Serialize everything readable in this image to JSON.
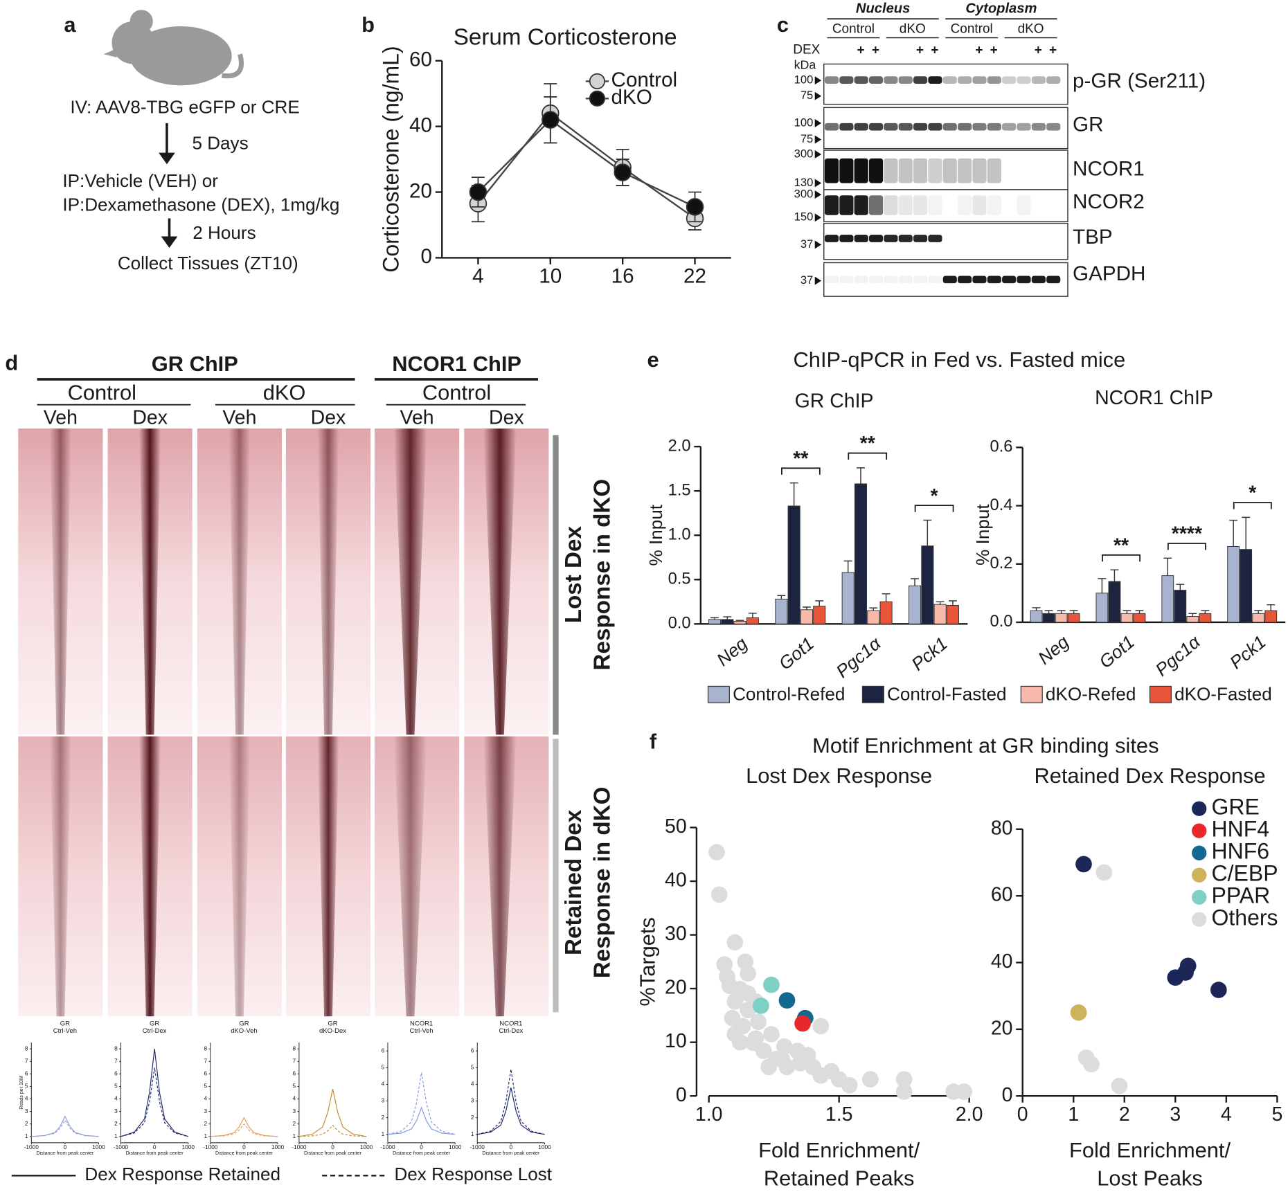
{
  "panel_labels": [
    "a",
    "b",
    "c",
    "d",
    "e",
    "f"
  ],
  "schematic": {
    "lines": [
      "IV: AAV8-TBG eGFP or CRE",
      "IP:Vehicle (VEH) or",
      "IP:Dexamethasone (DEX), 1mg/kg",
      "Collect Tissues (ZT10)"
    ],
    "arrow_labels": [
      "5 Days",
      "2 Hours"
    ]
  },
  "western_blot": {
    "compartments": [
      "Nucleus",
      "Cytoplasm"
    ],
    "genotypes": [
      "Control",
      "dKO",
      "Control",
      "dKO"
    ],
    "dex_label": "DEX",
    "dex_marks": [
      "+",
      "+",
      "+",
      "+",
      "+",
      "+",
      "+",
      "+"
    ],
    "kda_label": "kDa",
    "rows": [
      {
        "protein": "p-GR (Ser211)",
        "markers": [
          "100",
          "75"
        ]
      },
      {
        "protein": "GR",
        "markers": [
          "100",
          "75"
        ]
      },
      {
        "protein": "NCOR1",
        "markers": [
          "300",
          "130"
        ]
      },
      {
        "protein": "NCOR2",
        "markers": [
          "300",
          "150"
        ]
      },
      {
        "protein": "TBP",
        "markers": [
          "37"
        ]
      },
      {
        "protein": "GAPDH",
        "markers": [
          "37"
        ]
      }
    ]
  },
  "heatmap": {
    "groups": [
      "GR ChIP",
      "NCOR1 ChIP"
    ],
    "genotypes": [
      "Control",
      "dKO",
      "Control"
    ],
    "treatments": [
      "Veh",
      "Dex",
      "Veh",
      "Dex",
      "Veh",
      "Dex"
    ],
    "clusters": [
      [
        "Lost Dex",
        "Response in dKO"
      ],
      [
        "Retained Dex",
        "Response in dKO"
      ]
    ],
    "profile_legend": [
      "Dex Response Retained",
      "Dex Response Lost"
    ]
  },
  "panel_e_title": "ChIP-qPCR in Fed vs. Fasted mice",
  "panel_f_title": "Motif Enrichment at GR binding sites",
  "chart_data": [
    {
      "type": "line",
      "title": "Serum Corticosterone",
      "ylabel": "Corticosterone (ng/mL)",
      "x": [
        4,
        10,
        16,
        22
      ],
      "xlim": [
        1,
        25
      ],
      "xticks": [
        4,
        10,
        16,
        22
      ],
      "ylim": [
        0,
        60
      ],
      "yticks": [
        0,
        20,
        40,
        60
      ],
      "legend": "upper right",
      "series": [
        {
          "name": "Control",
          "color": "#d3d3d3",
          "values": [
            16.5,
            44,
            27.5,
            12
          ],
          "errors": [
            5.5,
            9,
            5.5,
            3.5
          ]
        },
        {
          "name": "dKO",
          "color": "#111111",
          "values": [
            20,
            42,
            26,
            15.5
          ],
          "errors": [
            4.5,
            7,
            4,
            4.5
          ]
        }
      ]
    },
    {
      "type": "bar",
      "title": "GR ChIP",
      "ylabel": "% Input",
      "categories": [
        "Neg",
        "Got1",
        "Pgc1α",
        "Pck1"
      ],
      "ylim": [
        0,
        2
      ],
      "yticks": [
        {
          "value": 0,
          "label": "0.0"
        },
        0.5,
        {
          "value": 1,
          "label": "1.0"
        },
        1.5,
        {
          "value": 2,
          "label": "2.0"
        }
      ],
      "significance": [
        null,
        "**",
        "**",
        "*"
      ],
      "legend": "bottom",
      "series": [
        {
          "name": "Control-Refed",
          "color": "#a8b3d0",
          "values": [
            0.05,
            0.28,
            0.58,
            0.43
          ],
          "errors": [
            0.02,
            0.04,
            0.13,
            0.08
          ]
        },
        {
          "name": "Control-Fasted",
          "color": "#1d2440",
          "values": [
            0.05,
            1.33,
            1.58,
            0.88
          ],
          "errors": [
            0.03,
            0.26,
            0.18,
            0.29
          ]
        },
        {
          "name": "dKO-Refed",
          "color": "#f6b9aa",
          "values": [
            0.03,
            0.16,
            0.15,
            0.22
          ],
          "errors": [
            0.01,
            0.03,
            0.03,
            0.03
          ]
        },
        {
          "name": "dKO-Fasted",
          "color": "#e8553a",
          "values": [
            0.07,
            0.2,
            0.25,
            0.21
          ],
          "errors": [
            0.05,
            0.06,
            0.09,
            0.05
          ]
        }
      ]
    },
    {
      "type": "bar",
      "title": "NCOR1 ChIP",
      "ylabel": "% Input",
      "categories": [
        "Neg",
        "Got1",
        "Pgc1α",
        "Pck1"
      ],
      "ylim": [
        0,
        0.6
      ],
      "yticks": [
        {
          "value": 0,
          "label": "0.0"
        },
        0.2,
        0.4,
        0.6
      ],
      "significance": [
        null,
        "**",
        "****",
        "*"
      ],
      "series": [
        {
          "color": "#a8b3d0",
          "values": [
            0.04,
            0.1,
            0.16,
            0.26
          ],
          "errors": [
            0.01,
            0.05,
            0.06,
            0.09
          ]
        },
        {
          "color": "#1d2440",
          "values": [
            0.03,
            0.14,
            0.11,
            0.25
          ],
          "errors": [
            0.01,
            0.04,
            0.02,
            0.11
          ]
        },
        {
          "color": "#f6b9aa",
          "values": [
            0.03,
            0.03,
            0.02,
            0.03
          ],
          "errors": [
            0.01,
            0.01,
            0.01,
            0.01
          ]
        },
        {
          "color": "#e8553a",
          "values": [
            0.03,
            0.03,
            0.03,
            0.04
          ],
          "errors": [
            0.01,
            0.01,
            0.01,
            0.02
          ]
        }
      ]
    },
    {
      "type": "scatter",
      "title": "Lost Dex Response",
      "xlabel": [
        "Fold Enrichment/",
        "Retained Peaks"
      ],
      "ylabel": "%Targets",
      "xlim": [
        1,
        2
      ],
      "xticks": [
        {
          "value": 1,
          "label": "1.0"
        },
        1.5,
        {
          "value": 2,
          "label": "2.0"
        }
      ],
      "ylim": [
        0,
        50
      ],
      "yticks": [
        0,
        10,
        20,
        30,
        40,
        50
      ],
      "series": [
        {
          "color": "#dcdcdc",
          "x": [
            1.03,
            1.04,
            1.1,
            1.06,
            1.14,
            1.07,
            1.15,
            1.12,
            1.1,
            1.15,
            1.13,
            1.1,
            1.19,
            1.24,
            1.29,
            1.34,
            1.38,
            1.43,
            1.47,
            1.5,
            1.54,
            1.62,
            1.75,
            1.75,
            1.94,
            1.98,
            1.3,
            1.35,
            1.26,
            1.21,
            1.17,
            1.15,
            1.18,
            1.4,
            1.43,
            1.18,
            1.23,
            1.28,
            1.09,
            1.12,
            1.08
          ],
          "y": [
            45.4,
            37.5,
            28.6,
            24.5,
            25,
            22.2,
            22.8,
            19.9,
            17.6,
            16,
            13,
            11.5,
            13.8,
            11.5,
            9.2,
            8.4,
            7.6,
            13,
            4.6,
            3.1,
            2,
            3.1,
            3.1,
            0.8,
            0.8,
            0.8,
            5.4,
            6.1,
            6.9,
            8.4,
            9.9,
            19.1,
            17.6,
            5.4,
            3.8,
            10.7,
            5.4,
            6.9,
            14.5,
            10,
            20.5
          ]
        },
        {
          "color": "#7ecfc4",
          "x": [
            1.24,
            1.2
          ],
          "y": [
            20.7,
            16.8
          ]
        },
        {
          "color": "#13688f",
          "x": [
            1.3,
            1.37
          ],
          "y": [
            17.8,
            14.5
          ]
        },
        {
          "color": "#e8282b",
          "x": [
            1.36
          ],
          "y": [
            13.5
          ]
        }
      ]
    },
    {
      "type": "scatter",
      "title": "Retained Dex Response",
      "xlabel": [
        "Fold Enrichment/",
        "Lost Peaks"
      ],
      "xlim": [
        0,
        5
      ],
      "xticks": [
        0,
        1,
        2,
        3,
        4,
        5
      ],
      "ylim": [
        0,
        80
      ],
      "yticks": [
        0,
        20,
        40,
        60,
        80
      ],
      "legend": "upper right",
      "series": [
        {
          "name": "GRE",
          "color": "#1c2657",
          "x": [
            1.2,
            3.0,
            3.2,
            3.25,
            3.85
          ],
          "y": [
            69.5,
            35.5,
            37,
            39,
            31.8
          ]
        },
        {
          "name": "HNF4",
          "color": "#e8282b",
          "x": [],
          "y": []
        },
        {
          "name": "HNF6",
          "color": "#13688f",
          "x": [],
          "y": []
        },
        {
          "name": "C/EBP",
          "color": "#cfb35a",
          "x": [
            1.1
          ],
          "y": [
            25
          ]
        },
        {
          "name": "PPAR",
          "color": "#7ecfc4",
          "x": [],
          "y": []
        },
        {
          "name": "Others",
          "color": "#dcdcdc",
          "x": [
            1.6,
            1.25,
            1.35,
            1.9
          ],
          "y": [
            67,
            11.5,
            9.5,
            3
          ]
        }
      ]
    },
    {
      "type": "line",
      "title": "GR",
      "subtitle": "Ctrl-Veh",
      "ylabel": "Reads per 10M",
      "xlabel": "Distance from peak center",
      "x": [
        -1000,
        -600,
        -300,
        -150,
        0,
        150,
        300,
        600,
        1000
      ],
      "xlim": [
        -1000,
        1000
      ],
      "xticks": [
        -1000,
        0,
        1000
      ],
      "ylim": [
        0.5,
        8.5
      ],
      "yticks": [
        1,
        2,
        3,
        4,
        5,
        6,
        7,
        8
      ],
      "series": [
        {
          "color": "#8fa0d8",
          "dash": false,
          "values": [
            1,
            1.08,
            1.32,
            1.8,
            2.6,
            1.8,
            1.32,
            1.08,
            1
          ]
        },
        {
          "color": "#8fa0d8",
          "dash": true,
          "values": [
            1,
            1.07,
            1.26,
            1.65,
            2.3,
            1.65,
            1.26,
            1.07,
            1
          ]
        }
      ]
    },
    {
      "type": "line",
      "title": "GR",
      "subtitle": "Ctrl-Dex",
      "xlabel": "Distance from peak center",
      "x": [
        -1000,
        -600,
        -300,
        -150,
        0,
        150,
        300,
        600,
        1000
      ],
      "xlim": [
        -1000,
        1000
      ],
      "xticks": [
        -1000,
        0,
        1000
      ],
      "ylim": [
        0.5,
        8.5
      ],
      "yticks": [
        1,
        2,
        3,
        4,
        5,
        6,
        7,
        8
      ],
      "series": [
        {
          "color": "#1f2a6b",
          "dash": false,
          "values": [
            1,
            1.35,
            2.4,
            4.5,
            8,
            4.5,
            2.4,
            1.35,
            1
          ]
        },
        {
          "color": "#1f2a6b",
          "dash": true,
          "values": [
            1,
            1.28,
            2.1,
            3.75,
            6.5,
            3.75,
            2.1,
            1.28,
            1
          ]
        }
      ]
    },
    {
      "type": "line",
      "title": "GR",
      "subtitle": "dKO-Veh",
      "xlabel": "Distance from peak center",
      "x": [
        -1000,
        -600,
        -300,
        -150,
        0,
        150,
        300,
        600,
        1000
      ],
      "xlim": [
        -1000,
        1000
      ],
      "xticks": [
        -1000,
        0,
        1000
      ],
      "ylim": [
        0.5,
        8.5
      ],
      "yticks": [
        1,
        2,
        3,
        4,
        5,
        6,
        7,
        8
      ],
      "series": [
        {
          "color": "#e3a257",
          "dash": false,
          "values": [
            1,
            1.08,
            1.3,
            1.75,
            2.5,
            1.75,
            1.3,
            1.08,
            1
          ]
        },
        {
          "color": "#e3a257",
          "dash": true,
          "values": [
            1,
            1.05,
            1.2,
            1.5,
            2,
            1.5,
            1.2,
            1.05,
            1
          ]
        }
      ]
    },
    {
      "type": "line",
      "title": "GR",
      "subtitle": "dKO-Dex",
      "xlabel": "Distance from peak center",
      "x": [
        -1000,
        -600,
        -300,
        -150,
        0,
        150,
        300,
        600,
        1000
      ],
      "xlim": [
        -1000,
        1000
      ],
      "xticks": [
        -1000,
        0,
        1000
      ],
      "ylim": [
        0.5,
        8.5
      ],
      "yticks": [
        1,
        2,
        3,
        4,
        5,
        6,
        7,
        8
      ],
      "series": [
        {
          "color": "#c98a2e",
          "dash": false,
          "values": [
            1,
            1.19,
            1.76,
            2.9,
            4.8,
            2.9,
            1.76,
            1.19,
            1
          ]
        },
        {
          "color": "#c98a2e",
          "dash": true,
          "values": [
            1,
            1.05,
            1.18,
            1.45,
            1.9,
            1.45,
            1.18,
            1.05,
            1
          ]
        }
      ]
    },
    {
      "type": "line",
      "title": "NCOR1",
      "subtitle": "Ctrl-Veh",
      "xlabel": "Distance from peak center",
      "x": [
        -1000,
        -600,
        -300,
        -150,
        0,
        150,
        300,
        600,
        1000
      ],
      "xlim": [
        -1000,
        1000
      ],
      "xticks": [
        -1000,
        0,
        1000
      ],
      "ylim": [
        0.5,
        6.5
      ],
      "yticks": [
        1,
        2,
        3,
        4,
        5,
        6
      ],
      "series": [
        {
          "color": "#7f9be0",
          "dash": false,
          "values": [
            1,
            1.08,
            1.32,
            1.8,
            2.6,
            1.8,
            1.32,
            1.08,
            1
          ]
        },
        {
          "color": "#7f9be0",
          "dash": true,
          "values": [
            1,
            1.19,
            1.74,
            2.85,
            4.7,
            2.85,
            1.74,
            1.19,
            1
          ]
        }
      ]
    },
    {
      "type": "line",
      "title": "NCOR1",
      "subtitle": "Ctrl-Dex",
      "xlabel": "Distance from peak center",
      "x": [
        -1000,
        -600,
        -300,
        -150,
        0,
        150,
        300,
        600,
        1000
      ],
      "xlim": [
        -1000,
        1000
      ],
      "xticks": [
        -1000,
        0,
        1000
      ],
      "ylim": [
        0.5,
        6.5
      ],
      "yticks": [
        1,
        2,
        3,
        4,
        5,
        6
      ],
      "series": [
        {
          "color": "#1f2a6b",
          "dash": false,
          "values": [
            1,
            1.14,
            1.56,
            2.4,
            3.8,
            2.4,
            1.56,
            1.14,
            1
          ]
        },
        {
          "color": "#1f2a6b",
          "dash": true,
          "values": [
            1,
            1.2,
            1.78,
            2.95,
            4.9,
            2.95,
            1.78,
            1.2,
            1
          ]
        }
      ]
    }
  ]
}
